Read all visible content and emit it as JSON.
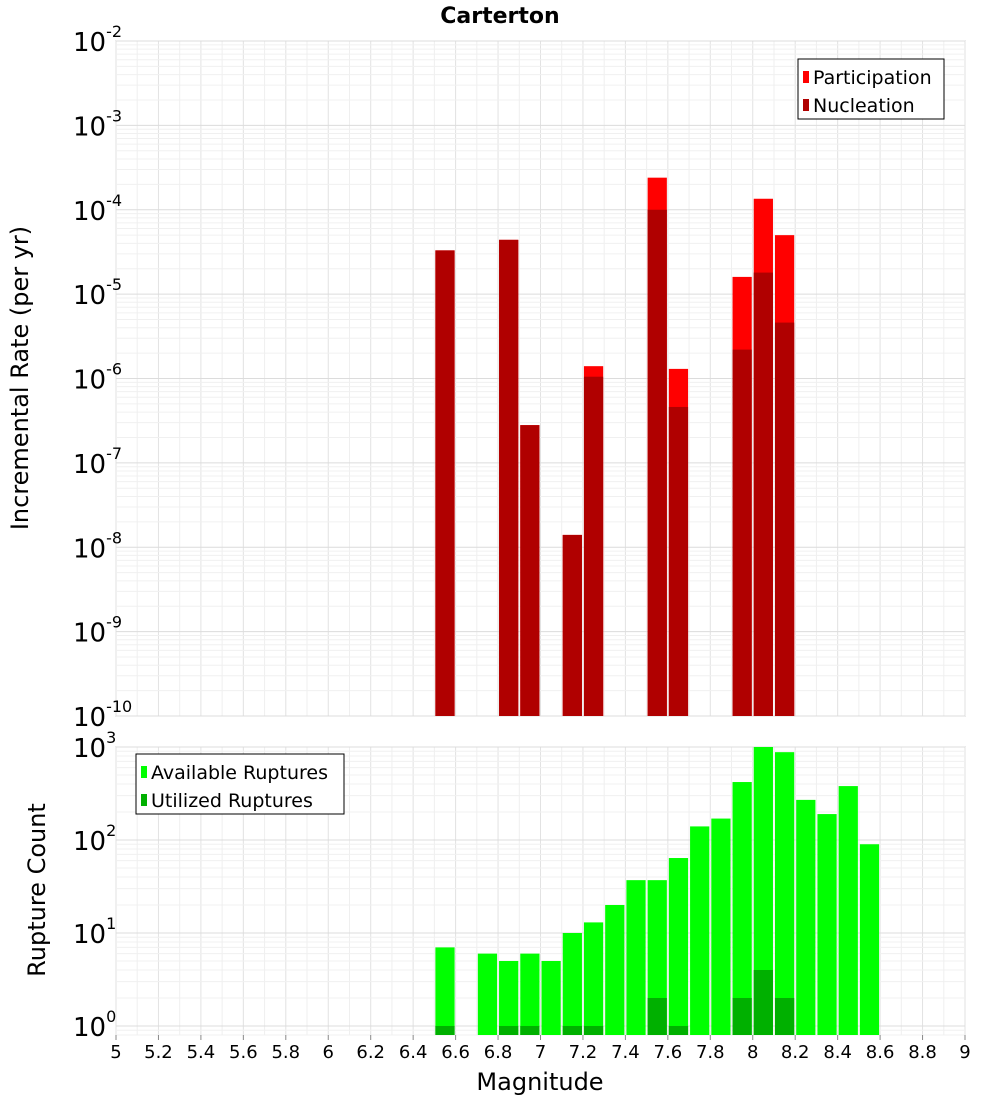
{
  "chart_data": [
    {
      "type": "bar",
      "title": "Carterton",
      "xlabel": "",
      "ylabel": "Incremental Rate (per yr)",
      "yscale": "log",
      "ylim": [
        1e-10,
        0.01
      ],
      "xlim": [
        5,
        9
      ],
      "grid": true,
      "legend_position": "top-right",
      "bar_width": 0.1,
      "y_tick_labels": [
        {
          "base": "10",
          "exp": "-10",
          "value": 1e-10
        },
        {
          "base": "10",
          "exp": "-9",
          "value": 1e-09
        },
        {
          "base": "10",
          "exp": "-8",
          "value": 1e-08
        },
        {
          "base": "10",
          "exp": "-7",
          "value": 1e-07
        },
        {
          "base": "10",
          "exp": "-6",
          "value": 1e-06
        },
        {
          "base": "10",
          "exp": "-5",
          "value": 1e-05
        },
        {
          "base": "10",
          "exp": "-4",
          "value": 0.0001
        },
        {
          "base": "10",
          "exp": "-3",
          "value": 0.001
        },
        {
          "base": "10",
          "exp": "-2",
          "value": 0.01
        }
      ],
      "series": [
        {
          "name": "Participation",
          "color": "#ff0000",
          "points": [
            {
              "x": 6.55,
              "y": 3.3e-05
            },
            {
              "x": 6.85,
              "y": 4.4e-05
            },
            {
              "x": 6.95,
              "y": 2.8e-07
            },
            {
              "x": 7.15,
              "y": 1.4e-08
            },
            {
              "x": 7.25,
              "y": 1.4e-06
            },
            {
              "x": 7.55,
              "y": 0.00024
            },
            {
              "x": 7.65,
              "y": 1.3e-06
            },
            {
              "x": 7.95,
              "y": 1.6e-05
            },
            {
              "x": 8.05,
              "y": 0.000135
            },
            {
              "x": 8.15,
              "y": 5e-05
            }
          ]
        },
        {
          "name": "Nucleation",
          "color": "#b00000",
          "points": [
            {
              "x": 6.55,
              "y": 3.3e-05
            },
            {
              "x": 6.85,
              "y": 4.4e-05
            },
            {
              "x": 6.95,
              "y": 2.8e-07
            },
            {
              "x": 7.15,
              "y": 1.4e-08
            },
            {
              "x": 7.25,
              "y": 1.05e-06
            },
            {
              "x": 7.55,
              "y": 0.0001
            },
            {
              "x": 7.65,
              "y": 4.6e-07
            },
            {
              "x": 7.95,
              "y": 2.2e-06
            },
            {
              "x": 8.05,
              "y": 1.8e-05
            },
            {
              "x": 8.15,
              "y": 4.6e-06
            }
          ]
        }
      ]
    },
    {
      "type": "bar",
      "title": "",
      "xlabel": "Magnitude",
      "ylabel": "Rupture Count",
      "yscale": "log",
      "ylim": [
        0.8,
        1000
      ],
      "xlim": [
        5,
        9
      ],
      "grid": true,
      "legend_position": "top-left",
      "bar_width": 0.1,
      "x_tick_labels": [
        "5",
        "5.2",
        "5.4",
        "5.6",
        "5.8",
        "6",
        "6.2",
        "6.4",
        "6.6",
        "6.8",
        "7",
        "7.2",
        "7.4",
        "7.6",
        "7.8",
        "8",
        "8.2",
        "8.4",
        "8.6",
        "8.8",
        "9"
      ],
      "y_tick_labels": [
        {
          "base": "10",
          "exp": "0",
          "value": 1
        },
        {
          "base": "10",
          "exp": "1",
          "value": 10
        },
        {
          "base": "10",
          "exp": "2",
          "value": 100
        },
        {
          "base": "10",
          "exp": "3",
          "value": 1000
        }
      ],
      "series": [
        {
          "name": "Available Ruptures",
          "color": "#00ff00",
          "points": [
            {
              "x": 6.55,
              "y": 7
            },
            {
              "x": 6.75,
              "y": 6
            },
            {
              "x": 6.85,
              "y": 5
            },
            {
              "x": 6.95,
              "y": 6
            },
            {
              "x": 7.05,
              "y": 5
            },
            {
              "x": 7.15,
              "y": 10
            },
            {
              "x": 7.25,
              "y": 13
            },
            {
              "x": 7.35,
              "y": 20
            },
            {
              "x": 7.45,
              "y": 37
            },
            {
              "x": 7.55,
              "y": 37
            },
            {
              "x": 7.65,
              "y": 64
            },
            {
              "x": 7.75,
              "y": 140
            },
            {
              "x": 7.85,
              "y": 170
            },
            {
              "x": 7.95,
              "y": 420
            },
            {
              "x": 8.05,
              "y": 1000
            },
            {
              "x": 8.15,
              "y": 880
            },
            {
              "x": 8.25,
              "y": 270
            },
            {
              "x": 8.35,
              "y": 190
            },
            {
              "x": 8.45,
              "y": 380
            },
            {
              "x": 8.55,
              "y": 90
            }
          ]
        },
        {
          "name": "Utilized Ruptures",
          "color": "#00b000",
          "points": [
            {
              "x": 6.55,
              "y": 1
            },
            {
              "x": 6.85,
              "y": 1
            },
            {
              "x": 6.95,
              "y": 1
            },
            {
              "x": 7.15,
              "y": 1
            },
            {
              "x": 7.25,
              "y": 1
            },
            {
              "x": 7.55,
              "y": 2
            },
            {
              "x": 7.65,
              "y": 1
            },
            {
              "x": 7.95,
              "y": 2
            },
            {
              "x": 8.05,
              "y": 4
            },
            {
              "x": 8.15,
              "y": 2
            }
          ]
        }
      ]
    }
  ]
}
